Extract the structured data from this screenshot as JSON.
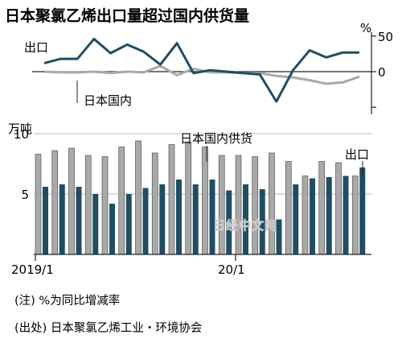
{
  "title": "日本聚氯乙烯出口量超过国内供货量",
  "watermark": "日经中文网",
  "notes": [
    "(注) %为同比增减率",
    "(出处) 日本聚氯乙烯工业・环境协会"
  ],
  "chart_data": [
    {
      "type": "line",
      "ylabel": "%",
      "ylim": [
        -60,
        60
      ],
      "yticks": [
        50,
        0
      ],
      "x": [
        "2019/1",
        "2019/2",
        "2019/3",
        "2019/4",
        "2019/5",
        "2019/6",
        "2019/7",
        "2019/8",
        "2019/9",
        "2019/10",
        "2019/11",
        "2019/12",
        "2020/1",
        "2020/2",
        "2020/3",
        "2020/4",
        "2020/5",
        "2020/6",
        "2020/7",
        "2020/8"
      ],
      "series": [
        {
          "name": "出口",
          "color": "#1f4e63",
          "values": [
            12,
            18,
            18,
            46,
            26,
            38,
            28,
            10,
            40,
            -2,
            2,
            0,
            -2,
            -4,
            -42,
            2,
            30,
            20,
            27,
            27
          ]
        },
        {
          "name": "日本国内",
          "color": "#a9a9a9",
          "values": [
            0,
            -1,
            -1,
            0,
            -2,
            0,
            -1,
            8,
            -5,
            4,
            -1,
            -1,
            -2,
            -2,
            -6,
            -8,
            -12,
            -17,
            -15,
            -7
          ]
        }
      ]
    },
    {
      "type": "bar",
      "ylabel": "万吨",
      "ylim": [
        0,
        10
      ],
      "yticks": [
        10,
        5
      ],
      "x": [
        "2019/1",
        "2019/2",
        "2019/3",
        "2019/4",
        "2019/5",
        "2019/6",
        "2019/7",
        "2019/8",
        "2019/9",
        "2019/10",
        "2019/11",
        "2019/12",
        "2020/1",
        "2020/2",
        "2020/3",
        "2020/4",
        "2020/5",
        "2020/6",
        "2020/7",
        "2020/8"
      ],
      "xtick_labels": [
        {
          "index": 0,
          "label": "2019/1"
        },
        {
          "index": 12,
          "label": "20/1"
        }
      ],
      "series": [
        {
          "name": "日本国内供货",
          "color": "#a9a9a9",
          "values": [
            8.3,
            8.6,
            8.8,
            8.2,
            8.1,
            8.9,
            9.4,
            8.4,
            9.1,
            9.3,
            8.9,
            8.2,
            8.2,
            8.1,
            8.4,
            7.7,
            6.5,
            7.7,
            7.6,
            6.5
          ]
        },
        {
          "name": "出口",
          "color": "#1f4e63",
          "values": [
            5.6,
            5.8,
            5.6,
            5.0,
            4.2,
            5.0,
            5.5,
            5.8,
            6.2,
            5.8,
            6.2,
            5.3,
            5.8,
            5.4,
            2.9,
            5.8,
            6.3,
            6.4,
            6.5,
            7.2
          ]
        }
      ]
    }
  ]
}
